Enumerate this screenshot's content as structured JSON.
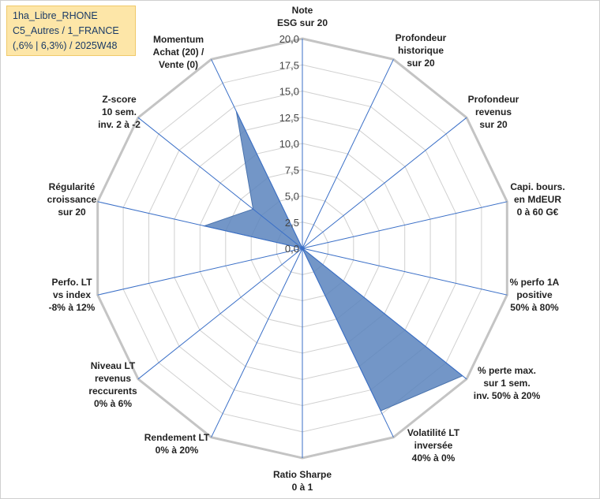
{
  "title_box": {
    "line1": "1ha_Libre_RHONE",
    "line2": "C5_Autres / 1_FRANCE",
    "line3": "(,6% | 6,3%) / 2025W48"
  },
  "chart_data": {
    "type": "radar",
    "axes": [
      [
        "Note",
        "ESG sur 20"
      ],
      [
        "Profondeur",
        "historique",
        "sur 20"
      ],
      [
        "Profondeur",
        "revenus",
        "sur 20"
      ],
      [
        "Capi. bours.",
        "en MdEUR",
        "0 à 60 G€"
      ],
      [
        "% perfo 1A",
        "positive",
        "50% à 80%"
      ],
      [
        "% perte max.",
        "sur 1 sem.",
        "inv. 50% à 20%"
      ],
      [
        "Volatilité LT",
        "inversée",
        "40% à 0%"
      ],
      [
        "Ratio Sharpe",
        "0 à 1"
      ],
      [
        "Rendement LT",
        "0% à 20%"
      ],
      [
        "Niveau LT",
        "revenus",
        "reccurents",
        "0% à 6%"
      ],
      [
        "Perfo. LT",
        "vs index",
        "-8% à 12%"
      ],
      [
        "Régularité",
        "croissance",
        "sur 20"
      ],
      [
        "Z-score",
        "10 sem.",
        "inv. 2 à -2"
      ],
      [
        "Momentum",
        "Achat (20) /",
        "Vente (0)"
      ]
    ],
    "values": [
      0,
      0,
      0,
      0,
      0,
      19.5,
      17.2,
      0,
      0,
      0,
      0,
      9.6,
      6.0,
      14.5
    ],
    "rlim": [
      0,
      20
    ],
    "ticks": [
      "0,0",
      "2,5",
      "5,0",
      "7,5",
      "10,0",
      "12,5",
      "15,0",
      "17,5",
      "20,0"
    ],
    "grid": true,
    "legend": "none",
    "fill_color": "#5b84bd",
    "line_color": "#4a73ad",
    "grid_color": "#d0d0d0",
    "outer_ring_color": "#c4c4c4",
    "spoke_color": "#3a6fc7"
  }
}
